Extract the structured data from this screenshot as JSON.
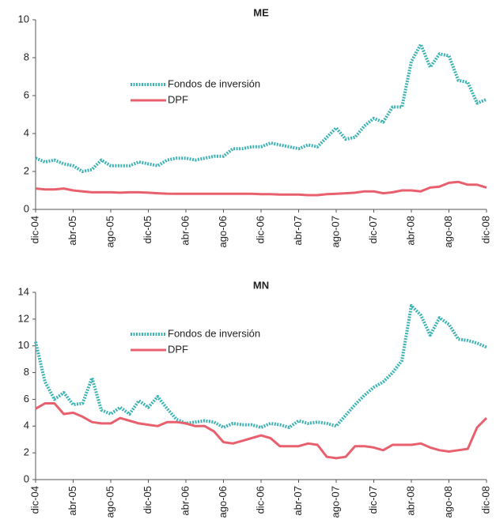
{
  "chart_data": [
    {
      "type": "line",
      "title": "ME",
      "categories": [
        "dic-04",
        null,
        null,
        null,
        "abr-05",
        null,
        null,
        null,
        "ago-05",
        null,
        null,
        null,
        "dic-05",
        null,
        null,
        null,
        "abr-06",
        null,
        null,
        null,
        "ago-06",
        null,
        null,
        null,
        "dic-06",
        null,
        null,
        null,
        "abr-07",
        null,
        null,
        null,
        "ago-07",
        null,
        null,
        null,
        "dic-07",
        null,
        null,
        null,
        "abr-08",
        null,
        null,
        null,
        "ago-08",
        null,
        null,
        null,
        "dic-08"
      ],
      "series": [
        {
          "name": "Fondos de inversión",
          "color": "#3fb3b3",
          "values": [
            2.7,
            2.5,
            2.6,
            2.4,
            2.3,
            2.0,
            2.1,
            2.6,
            2.3,
            2.3,
            2.3,
            2.5,
            2.4,
            2.3,
            2.6,
            2.7,
            2.7,
            2.6,
            2.7,
            2.8,
            2.8,
            3.2,
            3.2,
            3.3,
            3.3,
            3.5,
            3.4,
            3.3,
            3.2,
            3.4,
            3.3,
            3.8,
            4.3,
            3.7,
            3.8,
            4.4,
            4.8,
            4.6,
            5.4,
            5.4,
            7.8,
            8.7,
            7.5,
            8.2,
            8.1,
            6.8,
            6.7,
            5.6,
            5.8
          ]
        },
        {
          "name": "DPF",
          "color": "#e8606e",
          "values": [
            1.1,
            1.05,
            1.05,
            1.1,
            1.0,
            0.95,
            0.9,
            0.9,
            0.9,
            0.88,
            0.9,
            0.9,
            0.88,
            0.85,
            0.83,
            0.82,
            0.82,
            0.82,
            0.82,
            0.82,
            0.82,
            0.82,
            0.82,
            0.82,
            0.8,
            0.8,
            0.78,
            0.78,
            0.78,
            0.75,
            0.75,
            0.8,
            0.82,
            0.85,
            0.88,
            0.95,
            0.95,
            0.85,
            0.9,
            1.0,
            1.0,
            0.95,
            1.15,
            1.2,
            1.4,
            1.45,
            1.3,
            1.3,
            1.15
          ]
        }
      ],
      "ylim": [
        0,
        10
      ],
      "yticks": [
        0,
        2,
        4,
        6,
        8,
        10
      ]
    },
    {
      "type": "line",
      "title": "MN",
      "categories": [
        "dic-04",
        null,
        null,
        null,
        "abr-05",
        null,
        null,
        null,
        "ago-05",
        null,
        null,
        null,
        "dic-05",
        null,
        null,
        null,
        "abr-06",
        null,
        null,
        null,
        "ago-06",
        null,
        null,
        null,
        "dic-06",
        null,
        null,
        null,
        "abr-07",
        null,
        null,
        null,
        "ago-07",
        null,
        null,
        null,
        "dic-07",
        null,
        null,
        null,
        "abr-08",
        null,
        null,
        null,
        "ago-08",
        null,
        null,
        null,
        "dic-08"
      ],
      "series": [
        {
          "name": "Fondos de inversión",
          "color": "#3fb3b3",
          "values": [
            10.3,
            7.3,
            6.0,
            6.5,
            5.6,
            5.7,
            7.6,
            5.2,
            4.9,
            5.4,
            4.9,
            5.9,
            5.4,
            6.2,
            5.3,
            4.5,
            4.2,
            4.3,
            4.4,
            4.3,
            3.9,
            4.2,
            4.1,
            4.1,
            3.9,
            4.2,
            4.1,
            3.9,
            4.4,
            4.2,
            4.3,
            4.2,
            4.0,
            4.8,
            5.6,
            6.3,
            6.9,
            7.3,
            8.0,
            8.9,
            13.0,
            12.3,
            10.8,
            12.1,
            11.6,
            10.5,
            10.4,
            10.2,
            9.9
          ]
        },
        {
          "name": "DPF",
          "color": "#e8606e",
          "values": [
            5.3,
            5.7,
            5.7,
            4.9,
            5.0,
            4.7,
            4.3,
            4.2,
            4.2,
            4.6,
            4.4,
            4.2,
            4.1,
            4.0,
            4.3,
            4.3,
            4.2,
            4.0,
            4.0,
            3.6,
            2.8,
            2.7,
            2.9,
            3.1,
            3.3,
            3.1,
            2.5,
            2.5,
            2.5,
            2.7,
            2.6,
            1.7,
            1.6,
            1.7,
            2.5,
            2.5,
            2.4,
            2.2,
            2.6,
            2.6,
            2.6,
            2.7,
            2.4,
            2.2,
            2.1,
            2.2,
            2.3,
            3.9,
            4.6
          ]
        }
      ],
      "ylim": [
        0,
        14
      ],
      "yticks": [
        0,
        2,
        4,
        6,
        8,
        10,
        12,
        14
      ]
    }
  ]
}
